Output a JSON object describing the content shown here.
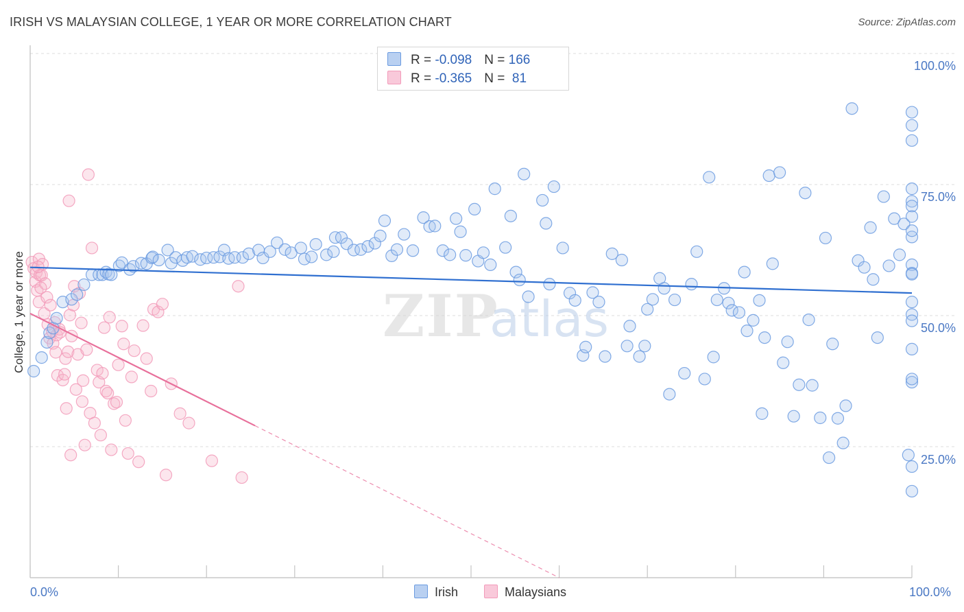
{
  "title": "IRISH VS MALAYSIAN COLLEGE, 1 YEAR OR MORE CORRELATION CHART",
  "source": "Source: ZipAtlas.com",
  "watermark": "ZIPatlas",
  "colors": {
    "irish": "#6b9be0",
    "irish_line": "#2f6fd0",
    "malaysian": "#f29ab9",
    "malaysian_line": "#e8709b",
    "tick_text": "#4a78c4"
  },
  "legend": {
    "rows": [
      {
        "r_label": "R = ",
        "r_value": "-0.098",
        "n_label": "N = ",
        "n_value": "166"
      },
      {
        "r_label": "R = ",
        "r_value": "-0.365",
        "n_label": "N = ",
        "n_value": " 81"
      }
    ]
  },
  "bottom_legend": [
    "Irish",
    "Malaysians"
  ],
  "chart_data": {
    "type": "scatter",
    "title": "IRISH VS MALAYSIAN COLLEGE, 1 YEAR OR MORE CORRELATION CHART",
    "xlabel": "",
    "ylabel": "College, 1 year or more",
    "xlim": [
      0,
      100
    ],
    "ylim": [
      0,
      100
    ],
    "x_tick_labels": [
      "0.0%",
      "100.0%"
    ],
    "y_tick_labels": [
      "100.0%",
      "75.0%",
      "50.0%",
      "25.0%"
    ],
    "y_ticks": [
      100,
      75,
      50,
      25
    ],
    "grid": true,
    "legend_position": "top-center",
    "series": [
      {
        "name": "Irish",
        "color": "#6b9be0",
        "trend": {
          "x": [
            0,
            100
          ],
          "y": [
            59.2,
            54.3
          ]
        },
        "points": [
          [
            0.4,
            39.4
          ],
          [
            1.3,
            42.0
          ],
          [
            1.9,
            44.9
          ],
          [
            2.2,
            46.7
          ],
          [
            2.6,
            47.6
          ],
          [
            3.0,
            49.5
          ],
          [
            3.7,
            52.6
          ],
          [
            4.7,
            53.1
          ],
          [
            5.3,
            54.0
          ],
          [
            6.1,
            55.9
          ],
          [
            7.0,
            57.8
          ],
          [
            7.8,
            57.8
          ],
          [
            8.2,
            57.8
          ],
          [
            8.6,
            58.3
          ],
          [
            8.9,
            57.9
          ],
          [
            9.2,
            57.8
          ],
          [
            10.1,
            59.5
          ],
          [
            10.4,
            60.1
          ],
          [
            11.3,
            58.8
          ],
          [
            11.7,
            59.4
          ],
          [
            12.6,
            60.0
          ],
          [
            13.2,
            59.9
          ],
          [
            13.8,
            61.0
          ],
          [
            13.9,
            61.2
          ],
          [
            14.6,
            60.6
          ],
          [
            15.6,
            62.5
          ],
          [
            16.0,
            60.0
          ],
          [
            16.5,
            61.1
          ],
          [
            17.3,
            60.5
          ],
          [
            17.8,
            61.1
          ],
          [
            18.4,
            61.3
          ],
          [
            19.3,
            60.7
          ],
          [
            20.0,
            61.0
          ],
          [
            20.8,
            61.1
          ],
          [
            21.5,
            61.2
          ],
          [
            22.0,
            62.5
          ],
          [
            22.5,
            60.9
          ],
          [
            23.2,
            61.1
          ],
          [
            24.1,
            61.1
          ],
          [
            24.8,
            61.8
          ],
          [
            25.9,
            62.5
          ],
          [
            26.4,
            61.0
          ],
          [
            27.2,
            62.2
          ],
          [
            28.0,
            63.9
          ],
          [
            28.9,
            62.6
          ],
          [
            29.6,
            62.0
          ],
          [
            30.7,
            62.9
          ],
          [
            31.1,
            60.8
          ],
          [
            31.9,
            61.2
          ],
          [
            32.4,
            63.6
          ],
          [
            33.6,
            61.6
          ],
          [
            34.4,
            62.2
          ],
          [
            34.6,
            64.9
          ],
          [
            35.3,
            64.9
          ],
          [
            35.9,
            63.7
          ],
          [
            36.7,
            62.5
          ],
          [
            37.5,
            62.6
          ],
          [
            38.3,
            63.2
          ],
          [
            39.1,
            63.8
          ],
          [
            39.7,
            65.2
          ],
          [
            40.2,
            68.1
          ],
          [
            41.0,
            61.4
          ],
          [
            41.6,
            62.6
          ],
          [
            42.4,
            65.5
          ],
          [
            43.4,
            62.4
          ],
          [
            44.6,
            68.7
          ],
          [
            45.3,
            67.0
          ],
          [
            45.9,
            67.1
          ],
          [
            46.8,
            62.4
          ],
          [
            47.6,
            61.6
          ],
          [
            48.3,
            68.5
          ],
          [
            48.8,
            66.0
          ],
          [
            49.4,
            61.5
          ],
          [
            50.4,
            70.3
          ],
          [
            50.8,
            60.4
          ],
          [
            51.4,
            62.0
          ],
          [
            52.2,
            59.7
          ],
          [
            52.7,
            74.2
          ],
          [
            53.9,
            63.0
          ],
          [
            54.5,
            69.0
          ],
          [
            55.1,
            58.3
          ],
          [
            55.5,
            56.8
          ],
          [
            56.0,
            77.0
          ],
          [
            56.5,
            53.6
          ],
          [
            58.1,
            72.0
          ],
          [
            58.5,
            67.6
          ],
          [
            58.9,
            56.0
          ],
          [
            59.4,
            74.6
          ],
          [
            60.4,
            62.9
          ],
          [
            61.2,
            54.3
          ],
          [
            61.8,
            52.9
          ],
          [
            62.7,
            42.4
          ],
          [
            63.0,
            44.0
          ],
          [
            63.8,
            54.4
          ],
          [
            64.5,
            52.6
          ],
          [
            65.2,
            42.2
          ],
          [
            66.0,
            61.8
          ],
          [
            67.1,
            60.6
          ],
          [
            67.7,
            44.2
          ],
          [
            68.0,
            48.0
          ],
          [
            69.1,
            42.2
          ],
          [
            69.7,
            44.2
          ],
          [
            70.0,
            51.2
          ],
          [
            70.6,
            53.1
          ],
          [
            71.4,
            57.1
          ],
          [
            71.9,
            55.2
          ],
          [
            72.5,
            35.0
          ],
          [
            73.1,
            53.0
          ],
          [
            74.2,
            39.0
          ],
          [
            75.0,
            56.0
          ],
          [
            75.6,
            62.2
          ],
          [
            76.5,
            37.9
          ],
          [
            77.0,
            76.4
          ],
          [
            77.5,
            42.1
          ],
          [
            77.9,
            53.0
          ],
          [
            78.7,
            55.2
          ],
          [
            79.2,
            52.4
          ],
          [
            79.6,
            51.0
          ],
          [
            80.4,
            50.6
          ],
          [
            81.0,
            58.3
          ],
          [
            81.3,
            47.1
          ],
          [
            82.0,
            49.1
          ],
          [
            82.7,
            52.9
          ],
          [
            83.0,
            31.3
          ],
          [
            83.3,
            45.8
          ],
          [
            83.8,
            76.7
          ],
          [
            84.2,
            59.9
          ],
          [
            85.0,
            77.3
          ],
          [
            85.4,
            41.0
          ],
          [
            85.9,
            45.0
          ],
          [
            86.6,
            30.8
          ],
          [
            87.2,
            36.8
          ],
          [
            87.9,
            73.4
          ],
          [
            88.3,
            49.2
          ],
          [
            88.7,
            36.7
          ],
          [
            89.6,
            30.5
          ],
          [
            90.2,
            64.8
          ],
          [
            90.6,
            22.9
          ],
          [
            91.0,
            44.6
          ],
          [
            91.6,
            30.4
          ],
          [
            92.2,
            25.7
          ],
          [
            92.5,
            32.8
          ],
          [
            93.2,
            89.5
          ],
          [
            93.9,
            60.5
          ],
          [
            94.6,
            59.2
          ],
          [
            95.3,
            66.8
          ],
          [
            95.6,
            56.9
          ],
          [
            96.1,
            45.8
          ],
          [
            96.8,
            72.7
          ],
          [
            97.4,
            59.5
          ],
          [
            98.0,
            68.5
          ],
          [
            98.6,
            61.6
          ],
          [
            99.1,
            67.5
          ],
          [
            99.6,
            23.4
          ],
          [
            100,
            50.2
          ],
          [
            100,
            71.8
          ],
          [
            100,
            52.6
          ],
          [
            100,
            74.2
          ],
          [
            100,
            70.9
          ],
          [
            100,
            68.9
          ],
          [
            100,
            65.0
          ],
          [
            100,
            59.7
          ],
          [
            100,
            88.8
          ],
          [
            100,
            16.5
          ],
          [
            100,
            21.2
          ],
          [
            100,
            86.3
          ],
          [
            100,
            49.0
          ],
          [
            100,
            58.1
          ],
          [
            100,
            37.3
          ],
          [
            100,
            43.6
          ],
          [
            100,
            37.9
          ],
          [
            100,
            57.9
          ],
          [
            100,
            66.2
          ],
          [
            100,
            83.4
          ]
        ]
      },
      {
        "name": "Malaysians",
        "color": "#f29ab9",
        "trend": {
          "x": [
            0,
            25.5
          ],
          "y": [
            50.4,
            29.0
          ],
          "dashed_to": {
            "x": 60,
            "y": 0
          }
        },
        "points": [
          [
            0.2,
            60.2
          ],
          [
            0.4,
            59.0
          ],
          [
            0.6,
            56.5
          ],
          [
            0.7,
            58.2
          ],
          [
            0.8,
            54.8
          ],
          [
            1.0,
            52.6
          ],
          [
            1.0,
            60.8
          ],
          [
            1.1,
            57.7
          ],
          [
            1.3,
            57.7
          ],
          [
            1.4,
            59.8
          ],
          [
            1.6,
            50.4
          ],
          [
            1.7,
            56.1
          ],
          [
            1.9,
            53.5
          ],
          [
            2.0,
            48.3
          ],
          [
            2.2,
            45.7
          ],
          [
            2.3,
            52.0
          ],
          [
            2.5,
            47.0
          ],
          [
            2.6,
            44.7
          ],
          [
            2.8,
            48.7
          ],
          [
            3.0,
            46.3
          ],
          [
            3.1,
            38.6
          ],
          [
            3.3,
            47.4
          ],
          [
            3.4,
            46.8
          ],
          [
            3.7,
            37.7
          ],
          [
            3.9,
            38.8
          ],
          [
            4.0,
            41.8
          ],
          [
            4.1,
            32.3
          ],
          [
            4.3,
            43.1
          ],
          [
            4.5,
            50.1
          ],
          [
            4.7,
            46.1
          ],
          [
            4.9,
            52.0
          ],
          [
            5.0,
            55.6
          ],
          [
            5.2,
            35.9
          ],
          [
            5.4,
            42.6
          ],
          [
            5.6,
            54.3
          ],
          [
            5.8,
            48.6
          ],
          [
            6.0,
            37.6
          ],
          [
            6.4,
            43.5
          ],
          [
            6.6,
            76.9
          ],
          [
            6.8,
            31.4
          ],
          [
            7.0,
            62.9
          ],
          [
            7.3,
            29.5
          ],
          [
            7.6,
            39.6
          ],
          [
            7.8,
            37.3
          ],
          [
            8.0,
            27.2
          ],
          [
            8.2,
            39.0
          ],
          [
            8.4,
            47.7
          ],
          [
            8.6,
            35.6
          ],
          [
            8.8,
            35.2
          ],
          [
            9.0,
            49.7
          ],
          [
            9.2,
            24.4
          ],
          [
            9.5,
            33.2
          ],
          [
            9.8,
            33.5
          ],
          [
            10.0,
            40.6
          ],
          [
            10.4,
            48.0
          ],
          [
            10.6,
            44.6
          ],
          [
            10.8,
            30.0
          ],
          [
            11.1,
            23.7
          ],
          [
            11.5,
            38.3
          ],
          [
            11.8,
            43.3
          ],
          [
            12.3,
            22.1
          ],
          [
            12.8,
            48.1
          ],
          [
            13.2,
            41.8
          ],
          [
            13.7,
            35.6
          ],
          [
            14.0,
            51.2
          ],
          [
            14.5,
            50.7
          ],
          [
            15.0,
            52.2
          ],
          [
            15.4,
            19.6
          ],
          [
            16.0,
            37.0
          ],
          [
            17.0,
            31.3
          ],
          [
            18.0,
            29.5
          ],
          [
            20.6,
            22.3
          ],
          [
            23.6,
            55.6
          ],
          [
            24.0,
            19.1
          ],
          [
            4.4,
            71.9
          ],
          [
            5.9,
            33.6
          ],
          [
            4.6,
            23.4
          ],
          [
            0.9,
            59.3
          ],
          [
            1.2,
            55.3
          ],
          [
            2.9,
            43.0
          ],
          [
            6.2,
            25.3
          ]
        ]
      }
    ]
  }
}
